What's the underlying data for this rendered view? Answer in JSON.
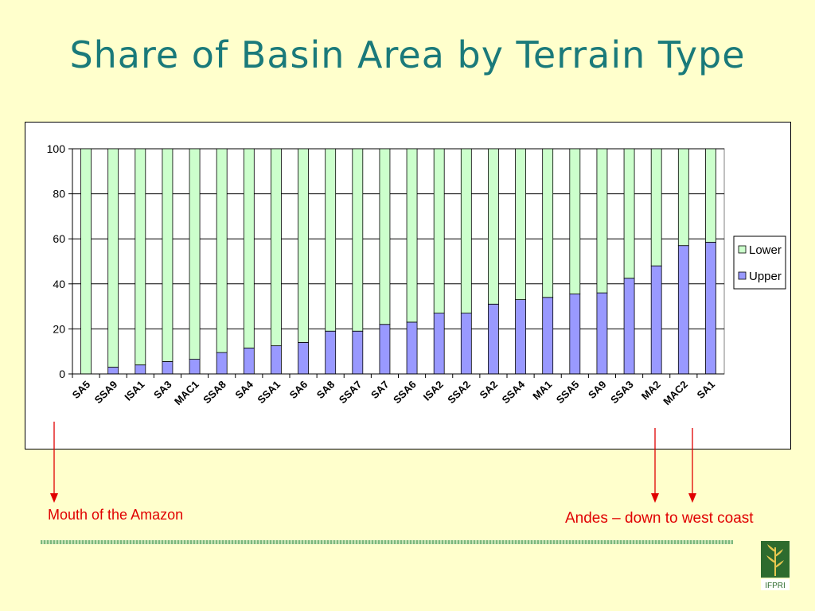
{
  "slide": {
    "title": "Share of Basin Area by Terrain Type",
    "note_left": "Mouth of the Amazon",
    "note_right": "Andes – down to west coast",
    "logo_text": "IFPRI"
  },
  "colors": {
    "background": "#ffffcc",
    "title": "#1a7a7a",
    "lower": "#ccffcc",
    "upper": "#9999ff",
    "arrow": "#e00000"
  },
  "chart_data": {
    "type": "bar",
    "stacked": true,
    "title": "",
    "xlabel": "",
    "ylabel": "",
    "ylim": [
      0,
      100
    ],
    "yticks": [
      0,
      20,
      40,
      60,
      80,
      100
    ],
    "grid": true,
    "legend_position": "right",
    "categories": [
      "SA5",
      "SSA9",
      "ISA1",
      "SA3",
      "MAC1",
      "SSA8",
      "SA4",
      "SSA1",
      "SA6",
      "SA8",
      "SSA7",
      "SA7",
      "SSA6",
      "ISA2",
      "SSA2",
      "SA2",
      "SSA4",
      "MA1",
      "SSA5",
      "SA9",
      "SSA3",
      "MA2",
      "MAC2",
      "SA1"
    ],
    "series": [
      {
        "name": "Upper",
        "color": "#9999ff",
        "values": [
          0,
          3,
          4,
          5.5,
          6.5,
          9.5,
          11.5,
          12.5,
          14,
          19,
          19,
          22,
          23,
          27,
          27,
          31,
          33,
          34,
          35.5,
          36,
          42.5,
          48,
          57,
          58.5
        ]
      },
      {
        "name": "Lower",
        "color": "#ccffcc",
        "values": [
          100,
          97,
          96,
          94.5,
          93.5,
          90.5,
          88.5,
          87.5,
          86,
          81,
          81,
          78,
          77,
          73,
          73,
          69,
          67,
          66,
          64.5,
          64,
          57.5,
          52,
          43,
          41.5
        ]
      }
    ],
    "legend": [
      "Lower",
      "Upper"
    ]
  }
}
